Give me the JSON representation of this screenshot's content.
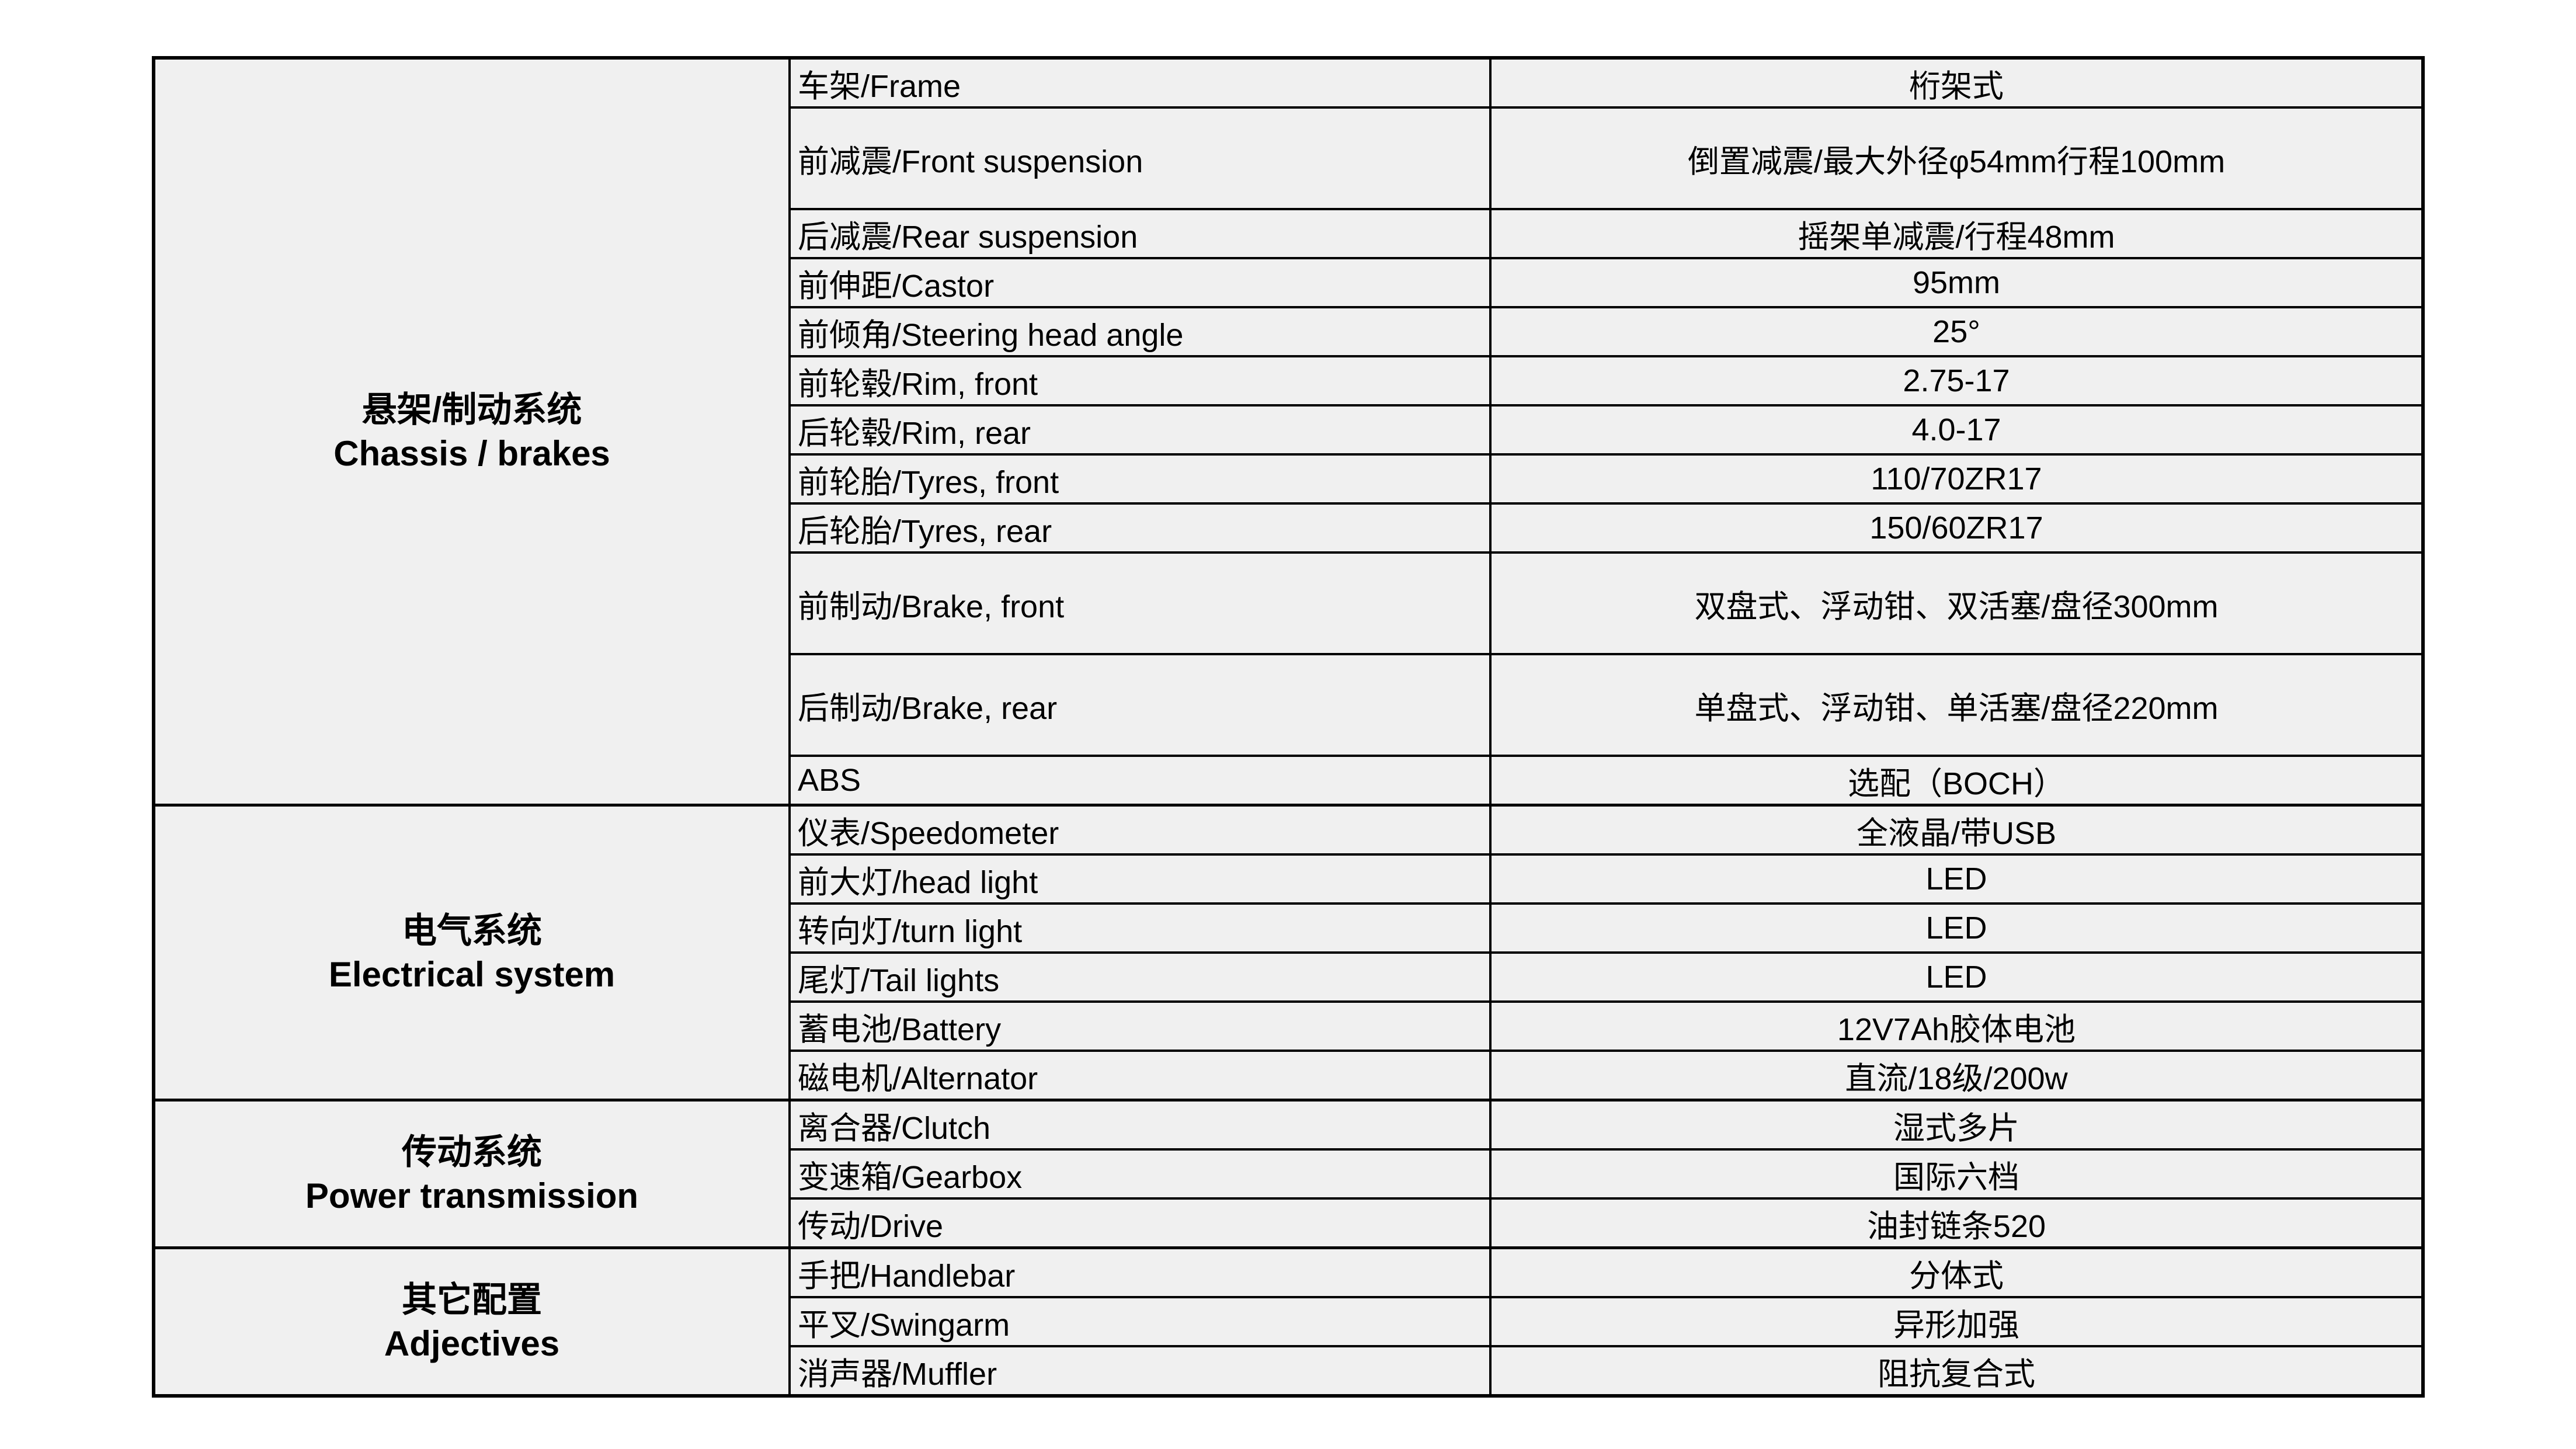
{
  "colors": {
    "page_background": "#ffffff",
    "cell_background": "#f0f0f0",
    "grid_line": "#000000",
    "text": "#000000"
  },
  "table": {
    "sections": [
      {
        "id": "chassis-brakes",
        "title_zh": "悬架/制动系统",
        "title_en": "Chassis / brakes",
        "rows": [
          {
            "label": "车架/Frame",
            "value": "桁架式",
            "double": false
          },
          {
            "label": "前减震/Front suspension",
            "value": "倒置减震/最大外径φ54mm行程100mm",
            "double": true
          },
          {
            "label": "后减震/Rear suspension",
            "value": "摇架单减震/行程48mm",
            "double": false
          },
          {
            "label": "前伸距/Castor",
            "value": "95mm",
            "double": false
          },
          {
            "label": "前倾角/Steering head angle",
            "value": "25°",
            "double": false
          },
          {
            "label": "前轮毂/Rim, front",
            "value": "2.75-17",
            "double": false
          },
          {
            "label": "后轮毂/Rim, rear",
            "value": "4.0-17",
            "double": false
          },
          {
            "label": "前轮胎/Tyres, front",
            "value": "110/70ZR17",
            "double": false
          },
          {
            "label": "后轮胎/Tyres, rear",
            "value": "150/60ZR17",
            "double": false
          },
          {
            "label": "前制动/Brake, front",
            "value": "双盘式、浮动钳、双活塞/盘径300mm",
            "double": true
          },
          {
            "label": "后制动/Brake, rear",
            "value": "单盘式、浮动钳、单活塞/盘径220mm",
            "double": true
          },
          {
            "label": "ABS",
            "value": "选配（BOCH）",
            "double": false
          }
        ]
      },
      {
        "id": "electrical-system",
        "title_zh": "电气系统",
        "title_en": "Electrical system",
        "rows": [
          {
            "label": "仪表/Speedometer",
            "value": "全液晶/带USB",
            "double": false
          },
          {
            "label": "前大灯/head light",
            "value": "LED",
            "double": false
          },
          {
            "label": "转向灯/turn light",
            "value": "LED",
            "double": false
          },
          {
            "label": "尾灯/Tail lights",
            "value": "LED",
            "double": false
          },
          {
            "label": "蓄电池/Battery",
            "value": "12V7Ah胶体电池",
            "double": false
          },
          {
            "label": "磁电机/Alternator",
            "value": "直流/18级/200w",
            "double": false
          }
        ]
      },
      {
        "id": "power-transmission",
        "title_zh": "传动系统",
        "title_en": "Power transmission",
        "rows": [
          {
            "label": "离合器/Clutch",
            "value": "湿式多片",
            "double": false
          },
          {
            "label": "变速箱/Gearbox",
            "value": "国际六档",
            "double": false
          },
          {
            "label": "传动/Drive",
            "value": "油封链条520",
            "double": false
          }
        ]
      },
      {
        "id": "other-configuration",
        "title_zh": "其它配置",
        "title_en": "Adjectives",
        "rows": [
          {
            "label": "手把/Handlebar",
            "value": "分体式",
            "double": false
          },
          {
            "label": "平叉/Swingarm",
            "value": "异形加强",
            "double": false
          },
          {
            "label": "消声器/Muffler",
            "value": "阻抗复合式",
            "double": false
          }
        ]
      }
    ]
  }
}
